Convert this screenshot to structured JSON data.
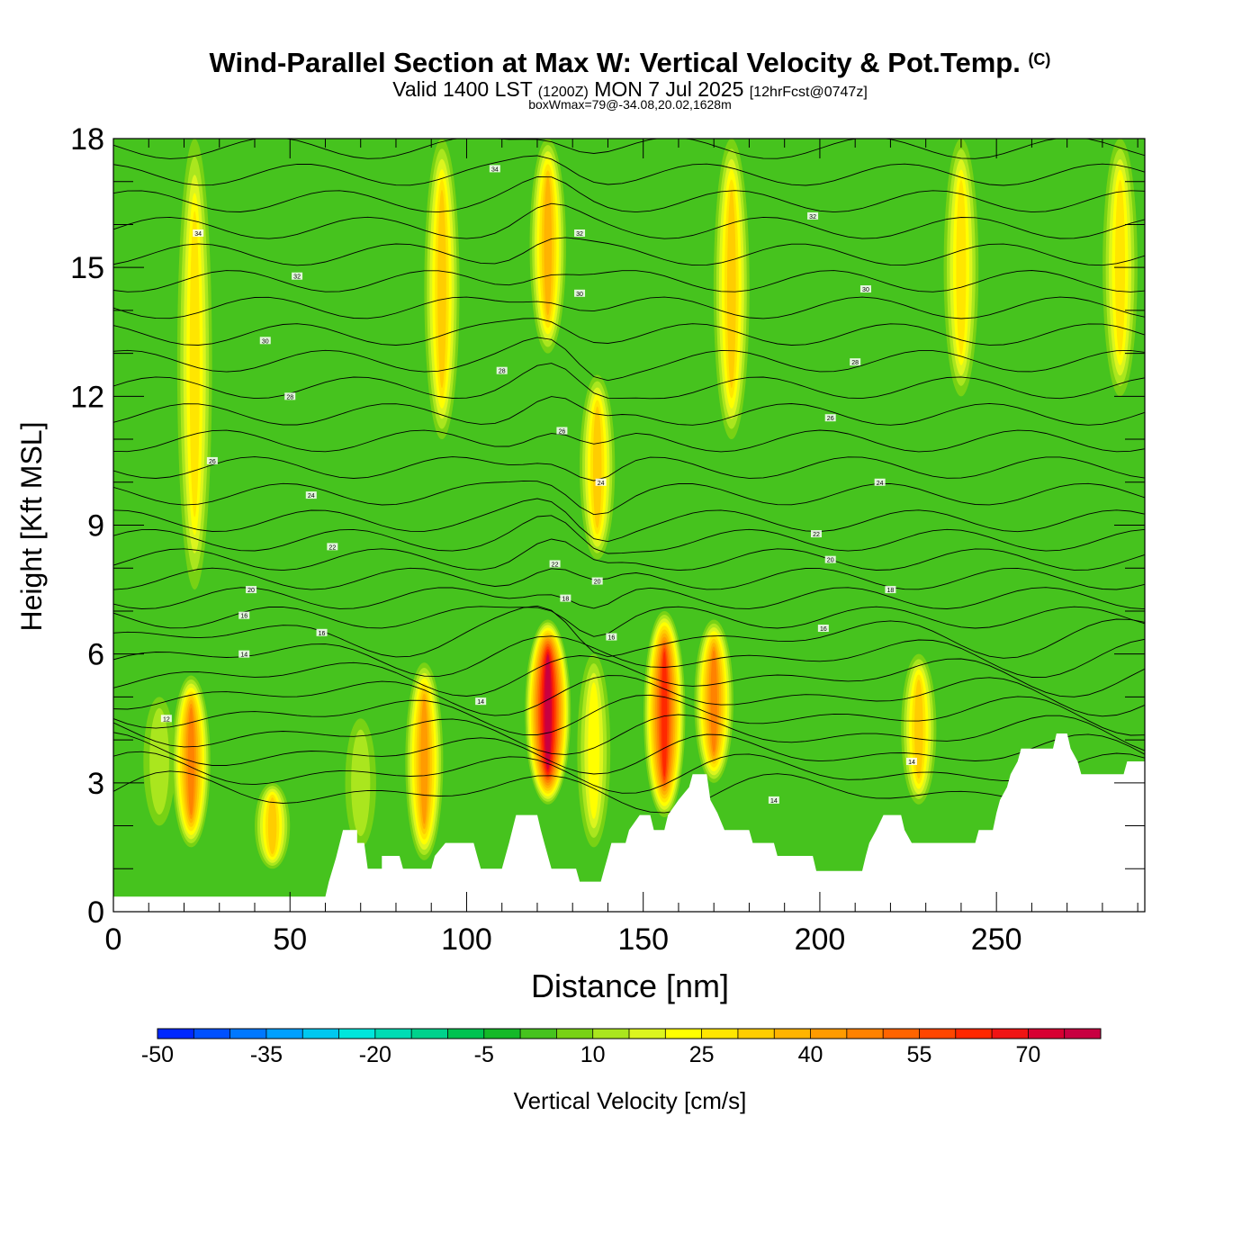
{
  "header": {
    "title_main": "Wind-Parallel Section at Max W: Vertical Velocity & Pot.Temp.",
    "title_mark": "(C)",
    "valid_prefix": "Valid 1400 LST",
    "valid_utc": "(1200Z)",
    "valid_date": "MON 7 Jul 2025",
    "valid_forecast": "[12hrFcst@0747z]",
    "boxwmax": "boxWmax=79@-34.08,20.02,1628m"
  },
  "chart_data": {
    "type": "heatmap",
    "xlabel": "Distance [nm]",
    "ylabel": "Height [Kft MSL]",
    "xlim": [
      0,
      292
    ],
    "ylim": [
      0,
      18
    ],
    "x_ticks": [
      "0",
      "50",
      "100",
      "150",
      "200",
      "250"
    ],
    "y_ticks": [
      "0",
      "3",
      "6",
      "9",
      "12",
      "15",
      "18"
    ],
    "colorbar": {
      "label": "Vertical Velocity [cm/s]",
      "min": -50,
      "step": 5,
      "tick_labels": [
        "-50",
        "-35",
        "-20",
        "-5",
        "10",
        "25",
        "40",
        "55",
        "70"
      ],
      "colors": [
        "#0028ff",
        "#0050ff",
        "#0078ff",
        "#00a0ff",
        "#00c8f0",
        "#00e6dc",
        "#00dcb4",
        "#00d28c",
        "#00c350",
        "#14b928",
        "#46c31e",
        "#78d214",
        "#aae61e",
        "#dcf51e",
        "#ffff00",
        "#ffe600",
        "#ffcd00",
        "#ffb400",
        "#ff9b00",
        "#ff8200",
        "#ff6400",
        "#ff4600",
        "#ff2800",
        "#f01414",
        "#d70032",
        "#c80041"
      ]
    },
    "w_cells": [
      {
        "x": 13,
        "zmin": 2.0,
        "zmax": 5.0,
        "w": 14.0
      },
      {
        "x": 22,
        "zmin": 1.5,
        "zmax": 5.5,
        "w": 45.0
      },
      {
        "x": 23,
        "zmin": 7.5,
        "zmax": 18.0,
        "w": 28.0
      },
      {
        "x": 45,
        "zmin": 1.0,
        "zmax": 3.0,
        "w": 30.0
      },
      {
        "x": 70,
        "zmin": 1.5,
        "zmax": 4.5,
        "w": 10.0
      },
      {
        "x": 88,
        "zmin": 1.2,
        "zmax": 5.8,
        "w": 42.0
      },
      {
        "x": 93,
        "zmin": 11.0,
        "zmax": 18.0,
        "w": 30.0
      },
      {
        "x": 123,
        "zmin": 2.5,
        "zmax": 6.8,
        "w": 79.0
      },
      {
        "x": 123,
        "zmin": 13.0,
        "zmax": 18.0,
        "w": 35.0
      },
      {
        "x": 136,
        "zmin": 1.5,
        "zmax": 6.0,
        "w": 20.0
      },
      {
        "x": 137,
        "zmin": 8.2,
        "zmax": 12.5,
        "w": 30.0
      },
      {
        "x": 156,
        "zmin": 2.2,
        "zmax": 7.0,
        "w": 60.0
      },
      {
        "x": 170,
        "zmin": 3.0,
        "zmax": 6.8,
        "w": 48.0
      },
      {
        "x": 175,
        "zmin": 11.0,
        "zmax": 18.0,
        "w": 33.0
      },
      {
        "x": 228,
        "zmin": 2.5,
        "zmax": 6.0,
        "w": 30.0
      },
      {
        "x": 240,
        "zmin": 12.0,
        "zmax": 18.0,
        "w": 28.0
      },
      {
        "x": 285,
        "zmin": 12.0,
        "zmax": 18.0,
        "w": 28.0
      }
    ],
    "theta_contours_label": "Pot.Temp.",
    "theta_labels": [
      {
        "x": 15,
        "z": 4.5,
        "text": "12"
      },
      {
        "x": 37,
        "z": 6.0,
        "text": "14"
      },
      {
        "x": 37,
        "z": 6.9,
        "text": "16"
      },
      {
        "x": 39,
        "z": 7.5,
        "text": "20"
      },
      {
        "x": 59,
        "z": 6.5,
        "text": "16"
      },
      {
        "x": 62,
        "z": 8.5,
        "text": "22"
      },
      {
        "x": 56,
        "z": 9.7,
        "text": "24"
      },
      {
        "x": 28,
        "z": 10.5,
        "text": "26"
      },
      {
        "x": 50,
        "z": 12.0,
        "text": "28"
      },
      {
        "x": 43,
        "z": 13.3,
        "text": "30"
      },
      {
        "x": 52,
        "z": 14.8,
        "text": "32"
      },
      {
        "x": 24,
        "z": 15.8,
        "text": "34"
      },
      {
        "x": 108,
        "z": 17.3,
        "text": "34"
      },
      {
        "x": 132,
        "z": 15.8,
        "text": "32"
      },
      {
        "x": 132,
        "z": 14.4,
        "text": "30"
      },
      {
        "x": 110,
        "z": 12.6,
        "text": "28"
      },
      {
        "x": 127,
        "z": 11.2,
        "text": "26"
      },
      {
        "x": 138,
        "z": 10.0,
        "text": "24"
      },
      {
        "x": 125,
        "z": 8.1,
        "text": "22"
      },
      {
        "x": 137,
        "z": 7.7,
        "text": "20"
      },
      {
        "x": 128,
        "z": 7.3,
        "text": "18"
      },
      {
        "x": 141,
        "z": 6.4,
        "text": "16"
      },
      {
        "x": 104,
        "z": 4.9,
        "text": "14"
      },
      {
        "x": 198,
        "z": 16.2,
        "text": "32"
      },
      {
        "x": 213,
        "z": 14.5,
        "text": "30"
      },
      {
        "x": 210,
        "z": 12.8,
        "text": "28"
      },
      {
        "x": 203,
        "z": 11.5,
        "text": "26"
      },
      {
        "x": 217,
        "z": 10.0,
        "text": "24"
      },
      {
        "x": 199,
        "z": 8.8,
        "text": "22"
      },
      {
        "x": 203,
        "z": 8.2,
        "text": "20"
      },
      {
        "x": 220,
        "z": 7.5,
        "text": "18"
      },
      {
        "x": 201,
        "z": 6.6,
        "text": "16"
      },
      {
        "x": 226,
        "z": 3.5,
        "text": "14"
      },
      {
        "x": 187,
        "z": 2.6,
        "text": "14"
      }
    ],
    "terrain_profile": [
      [
        0,
        0.35
      ],
      [
        60,
        0.35
      ],
      [
        61,
        0.7
      ],
      [
        63,
        1.25
      ],
      [
        65,
        1.9
      ],
      [
        69,
        1.9
      ],
      [
        69,
        1.6
      ],
      [
        71,
        1.6
      ],
      [
        72,
        1.0
      ],
      [
        76,
        1.0
      ],
      [
        76,
        1.3
      ],
      [
        81,
        1.3
      ],
      [
        82,
        1.0
      ],
      [
        90,
        1.0
      ],
      [
        91,
        1.3
      ],
      [
        94,
        1.6
      ],
      [
        102,
        1.6
      ],
      [
        103,
        1.3
      ],
      [
        104,
        1.0
      ],
      [
        110,
        1.0
      ],
      [
        111,
        1.3
      ],
      [
        112,
        1.6
      ],
      [
        114,
        2.25
      ],
      [
        120,
        2.25
      ],
      [
        121,
        1.9
      ],
      [
        122,
        1.6
      ],
      [
        124,
        1.0
      ],
      [
        131,
        1.0
      ],
      [
        132,
        0.7
      ],
      [
        138,
        0.7
      ],
      [
        139,
        1.0
      ],
      [
        140,
        1.3
      ],
      [
        141,
        1.6
      ],
      [
        145,
        1.6
      ],
      [
        146,
        1.9
      ],
      [
        149,
        2.25
      ],
      [
        152,
        2.25
      ],
      [
        153,
        1.9
      ],
      [
        156,
        1.9
      ],
      [
        157,
        2.25
      ],
      [
        160,
        2.6
      ],
      [
        163,
        2.9
      ],
      [
        164,
        3.2
      ],
      [
        168,
        3.2
      ],
      [
        169,
        2.6
      ],
      [
        171,
        2.3
      ],
      [
        173,
        1.9
      ],
      [
        180,
        1.9
      ],
      [
        181,
        1.6
      ],
      [
        187,
        1.6
      ],
      [
        188,
        1.3
      ],
      [
        198,
        1.3
      ],
      [
        199,
        0.95
      ],
      [
        212,
        0.95
      ],
      [
        213,
        1.3
      ],
      [
        214,
        1.6
      ],
      [
        216,
        1.9
      ],
      [
        218,
        2.25
      ],
      [
        223,
        2.25
      ],
      [
        224,
        1.9
      ],
      [
        226,
        1.6
      ],
      [
        244,
        1.6
      ],
      [
        245,
        1.9
      ],
      [
        249,
        1.9
      ],
      [
        250,
        2.3
      ],
      [
        251,
        2.6
      ],
      [
        253,
        2.9
      ],
      [
        254,
        3.2
      ],
      [
        256,
        3.5
      ],
      [
        257,
        3.8
      ],
      [
        266,
        3.8
      ],
      [
        267,
        4.15
      ],
      [
        270,
        4.15
      ],
      [
        271,
        3.8
      ],
      [
        273,
        3.5
      ],
      [
        274,
        3.2
      ],
      [
        286,
        3.2
      ],
      [
        287,
        3.5
      ],
      [
        292,
        3.5
      ]
    ]
  }
}
